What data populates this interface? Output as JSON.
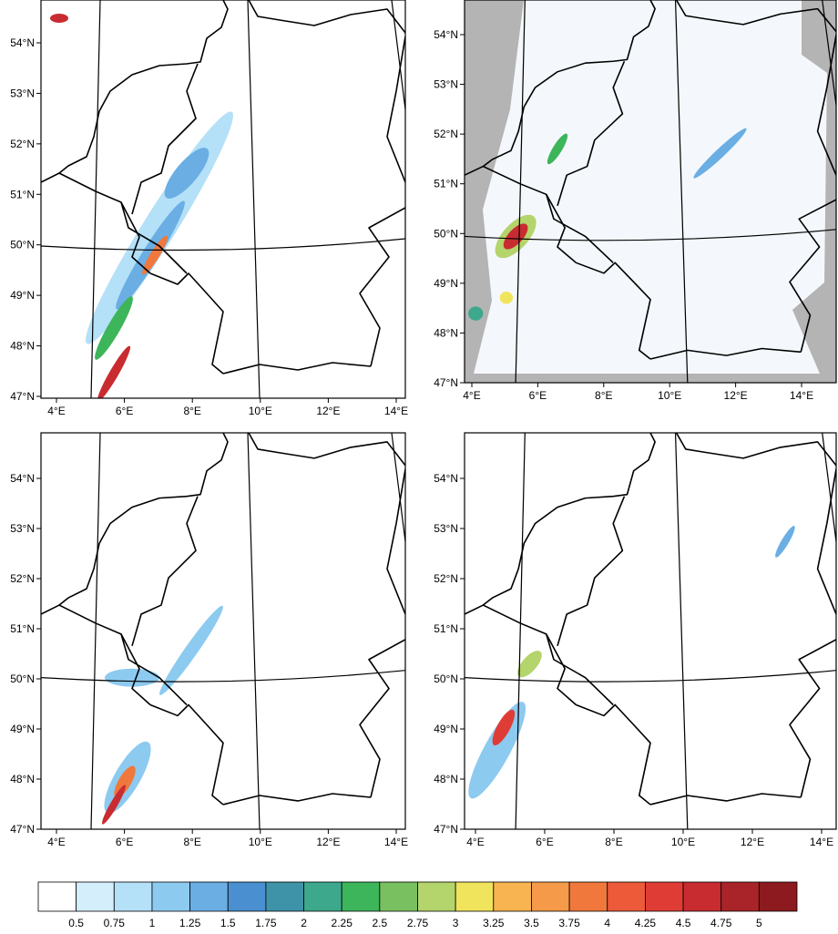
{
  "map": {
    "lat_ticks": [
      {
        "value": 54,
        "label": "54°N"
      },
      {
        "value": 53,
        "label": "53°N"
      },
      {
        "value": 52,
        "label": "52°N"
      },
      {
        "value": 51,
        "label": "51°N"
      },
      {
        "value": 50,
        "label": "50°N"
      },
      {
        "value": 49,
        "label": "49°N"
      },
      {
        "value": 48,
        "label": "48°N"
      },
      {
        "value": 47,
        "label": "47°N"
      }
    ],
    "lon_ticks": [
      {
        "value": 4,
        "label": "4°E"
      },
      {
        "value": 6,
        "label": "6°E"
      },
      {
        "value": 8,
        "label": "8°E"
      },
      {
        "value": 10,
        "label": "10°E"
      },
      {
        "value": 12,
        "label": "12°E"
      },
      {
        "value": 14,
        "label": "14°E"
      }
    ],
    "colorbar": {
      "colors": [
        "#ffffff",
        "#d4eefc",
        "#b4e0f8",
        "#8ccaf0",
        "#6aaee4",
        "#4a90d0",
        "#3e93a8",
        "#3da88c",
        "#3db55a",
        "#78c060",
        "#b4d46c",
        "#f0e45c",
        "#f8b450",
        "#f49a48",
        "#f0783c",
        "#ec5a3a",
        "#e03c36",
        "#c82c30",
        "#a82428",
        "#8c1a1e"
      ],
      "ticks": [
        0.5,
        0.75,
        1,
        1.25,
        1.5,
        1.75,
        2,
        2.25,
        2.5,
        2.75,
        3,
        3.25,
        3.5,
        3.75,
        4,
        4.25,
        4.5,
        4.75,
        5
      ]
    }
  }
}
